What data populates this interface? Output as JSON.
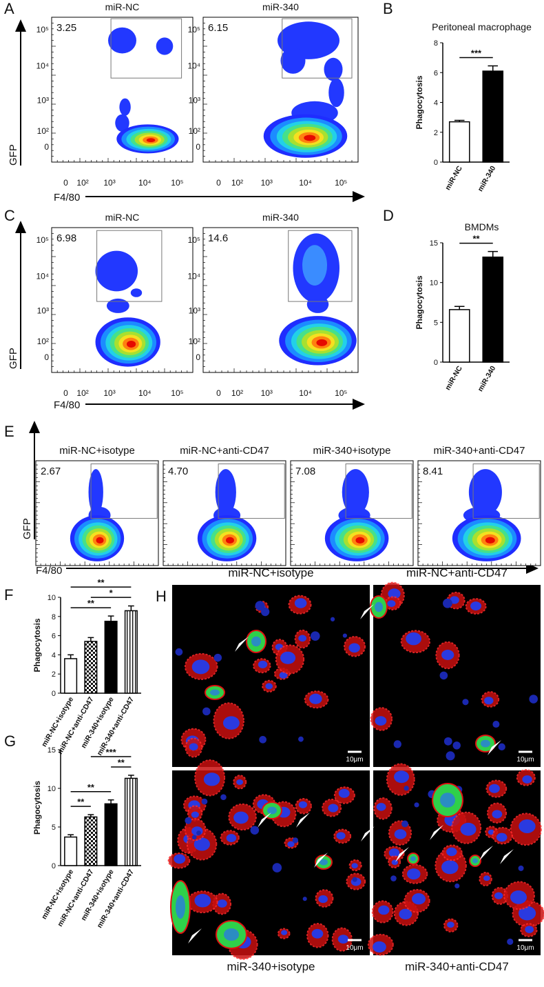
{
  "panels": {
    "A": {
      "label": "A",
      "y_axis": "GFP",
      "x_axis": "F4/80",
      "y_ticks": [
        "10⁵",
        "10⁴",
        "10³",
        "10²",
        "0"
      ],
      "x_ticks": [
        "0",
        "10²",
        "10³",
        "10⁴",
        "10⁵"
      ],
      "plots": [
        {
          "title": "miR-NC",
          "gate_percent": "3.25"
        },
        {
          "title": "miR-340",
          "gate_percent": "6.15"
        }
      ]
    },
    "C": {
      "label": "C",
      "y_axis": "GFP",
      "x_axis": "F4/80",
      "y_ticks": [
        "10⁵",
        "10⁴",
        "10³",
        "10²",
        "0"
      ],
      "x_ticks": [
        "0",
        "10²",
        "10³",
        "10⁴",
        "10⁵"
      ],
      "plots": [
        {
          "title": "miR-NC",
          "gate_percent": "6.98"
        },
        {
          "title": "miR-340",
          "gate_percent": "14.6"
        }
      ]
    },
    "E": {
      "label": "E",
      "y_axis": "GFP",
      "x_axis": "F4/80",
      "plots": [
        {
          "title": "miR-NC+isotype",
          "gate_percent": "2.67"
        },
        {
          "title": "miR-NC+anti-CD47",
          "gate_percent": "4.70"
        },
        {
          "title": "miR-340+isotype",
          "gate_percent": "7.08"
        },
        {
          "title": "miR-340+anti-CD47",
          "gate_percent": "8.41"
        }
      ]
    },
    "H": {
      "label": "H",
      "scale_bar": "10μm",
      "images": [
        {
          "title": "miR-NC+isotype"
        },
        {
          "title": "miR-NC+anti-CD47"
        },
        {
          "title": "miR-340+isotype"
        },
        {
          "title": "miR-340+anti-CD47"
        }
      ]
    }
  },
  "chart_data": [
    {
      "type": "bar",
      "panel_label": "B",
      "title": "Peritoneal macrophage",
      "y_label": "Phagocytosis",
      "categories": [
        "miR-NC",
        "miR-340"
      ],
      "values": [
        2.7,
        6.1
      ],
      "errors": [
        0.1,
        0.35
      ],
      "fills": [
        "white",
        "black"
      ],
      "ylim": [
        0,
        8
      ],
      "yticks": [
        0,
        2,
        4,
        6,
        8
      ],
      "annotations": [
        {
          "text": "***",
          "between": [
            0,
            1
          ]
        }
      ]
    },
    {
      "type": "bar",
      "panel_label": "D",
      "title": "BMDMs",
      "y_label": "Phagocytosis",
      "categories": [
        "miR-NC",
        "miR-340"
      ],
      "values": [
        6.6,
        13.2
      ],
      "errors": [
        0.4,
        0.7
      ],
      "fills": [
        "white",
        "black"
      ],
      "ylim": [
        0,
        15
      ],
      "yticks": [
        0,
        5,
        10,
        15
      ],
      "annotations": [
        {
          "text": "**",
          "between": [
            0,
            1
          ]
        }
      ]
    },
    {
      "type": "bar",
      "panel_label": "F",
      "y_label": "Phagocytosis",
      "categories": [
        "miR-NC+isotype",
        "miR-NC+anti-CD47",
        "miR-340+isotype",
        "miR-340+anti-CD47"
      ],
      "values": [
        3.6,
        5.4,
        7.5,
        8.6
      ],
      "errors": [
        0.4,
        0.4,
        0.55,
        0.5
      ],
      "fills": [
        "white",
        "checker",
        "black",
        "stripes"
      ],
      "ylim": [
        0,
        10
      ],
      "yticks": [
        0,
        2,
        4,
        6,
        8,
        10
      ],
      "annotations": [
        {
          "text": "**",
          "between": [
            0,
            2
          ]
        },
        {
          "text": "*",
          "between": [
            1,
            3
          ]
        },
        {
          "text": "**",
          "between": [
            0,
            3
          ]
        }
      ]
    },
    {
      "type": "bar",
      "panel_label": "G",
      "y_label": "Phagocytosis",
      "categories": [
        "miR-NC+isotype",
        "miR-NC+anti-CD47",
        "miR-340+isotype",
        "miR-340+anti-CD47"
      ],
      "values": [
        3.7,
        6.3,
        8.0,
        11.3
      ],
      "errors": [
        0.3,
        0.3,
        0.5,
        0.4
      ],
      "fills": [
        "white",
        "checker",
        "black",
        "stripes"
      ],
      "ylim": [
        0,
        15
      ],
      "yticks": [
        0,
        5,
        10,
        15
      ],
      "annotations": [
        {
          "text": "**",
          "between": [
            0,
            1
          ]
        },
        {
          "text": "**",
          "between": [
            0,
            2
          ]
        },
        {
          "text": "**",
          "between": [
            2,
            3
          ]
        },
        {
          "text": "***",
          "between": [
            1,
            3
          ]
        }
      ]
    }
  ]
}
